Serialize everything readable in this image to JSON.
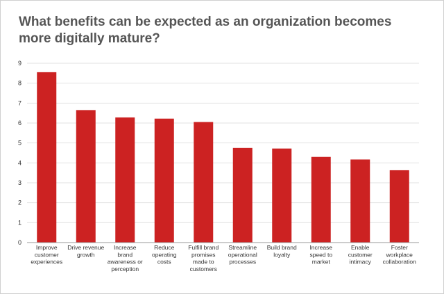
{
  "chart_data": {
    "type": "bar",
    "title": "What benefits can be expected as an organization becomes more digitally mature?",
    "categories": [
      "Improve customer experiences",
      "Drive revenue growth",
      "Increase brand awareness or perception",
      "Reduce operating costs",
      "Fulfill brand promises made to customers",
      "Streamline operational processes",
      "Build brand loyalty",
      "Increase speed to market",
      "Enable customer intimacy",
      "Foster workplace collaboration"
    ],
    "category_lines": [
      [
        "Improve",
        "customer",
        "experiences"
      ],
      [
        "Drive revenue",
        "growth"
      ],
      [
        "Increase",
        "brand",
        "awareness or",
        "perception"
      ],
      [
        "Reduce",
        "operating",
        "costs"
      ],
      [
        "Fulfill brand",
        "promises",
        "made to",
        "customers"
      ],
      [
        "Streamline",
        "operational",
        "processes"
      ],
      [
        "Build brand",
        "loyalty"
      ],
      [
        "Increase",
        "speed to",
        "market"
      ],
      [
        "Enable",
        "customer",
        "intimacy"
      ],
      [
        "Foster",
        "workplace",
        "collaboration"
      ]
    ],
    "values": [
      8.55,
      6.65,
      6.28,
      6.22,
      6.05,
      4.75,
      4.72,
      4.3,
      4.17,
      3.63
    ],
    "ylim": [
      0,
      9
    ],
    "yticks": [
      "0",
      "1",
      "2",
      "3",
      "4",
      "5",
      "6",
      "7",
      "8",
      "9"
    ],
    "xlabel": "",
    "ylabel": "",
    "grid": true,
    "colors": {
      "bar": "#cc2222",
      "grid": "#e2e2e2",
      "axis": "#999999"
    }
  }
}
